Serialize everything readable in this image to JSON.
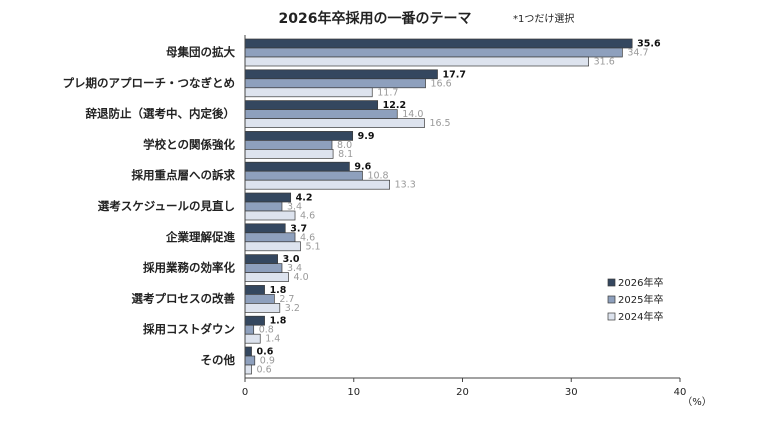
{
  "chart_data": {
    "type": "bar",
    "orientation": "horizontal",
    "title": "2026年卒採用の一番のテーマ",
    "note": "*1つだけ選択",
    "categories": [
      "母集団の拡大",
      "プレ期のアプローチ・つなぎとめ",
      "辞退防止（選考中、内定後）",
      "学校との関係強化",
      "採用重点層への訴求",
      "選考スケジュールの見直し",
      "企業理解促進",
      "採用業務の効率化",
      "選考プロセスの改善",
      "採用コストダウン",
      "その他"
    ],
    "series": [
      {
        "name": "2026年卒",
        "color": "#34475f",
        "label_color": "#111111",
        "bold": true,
        "values": [
          35.6,
          17.7,
          12.2,
          9.9,
          9.6,
          4.2,
          3.7,
          3.0,
          1.8,
          1.8,
          0.6
        ]
      },
      {
        "name": "2025年卒",
        "color": "#8ea0bd",
        "label_color": "#9a9a9a",
        "bold": false,
        "values": [
          34.7,
          16.6,
          14.0,
          8.0,
          10.8,
          3.4,
          4.6,
          3.4,
          2.7,
          0.8,
          0.9
        ]
      },
      {
        "name": "2024年卒",
        "color": "#dde3ee",
        "label_color": "#9a9a9a",
        "bold": false,
        "values": [
          31.6,
          11.7,
          16.5,
          8.1,
          13.3,
          4.6,
          5.1,
          4.0,
          3.2,
          1.4,
          0.6
        ]
      }
    ],
    "xlim": [
      0,
      40
    ],
    "xticks": [
      0,
      10,
      20,
      30,
      40
    ],
    "xunit": "（%）",
    "legend_position": "right",
    "grid": false
  }
}
